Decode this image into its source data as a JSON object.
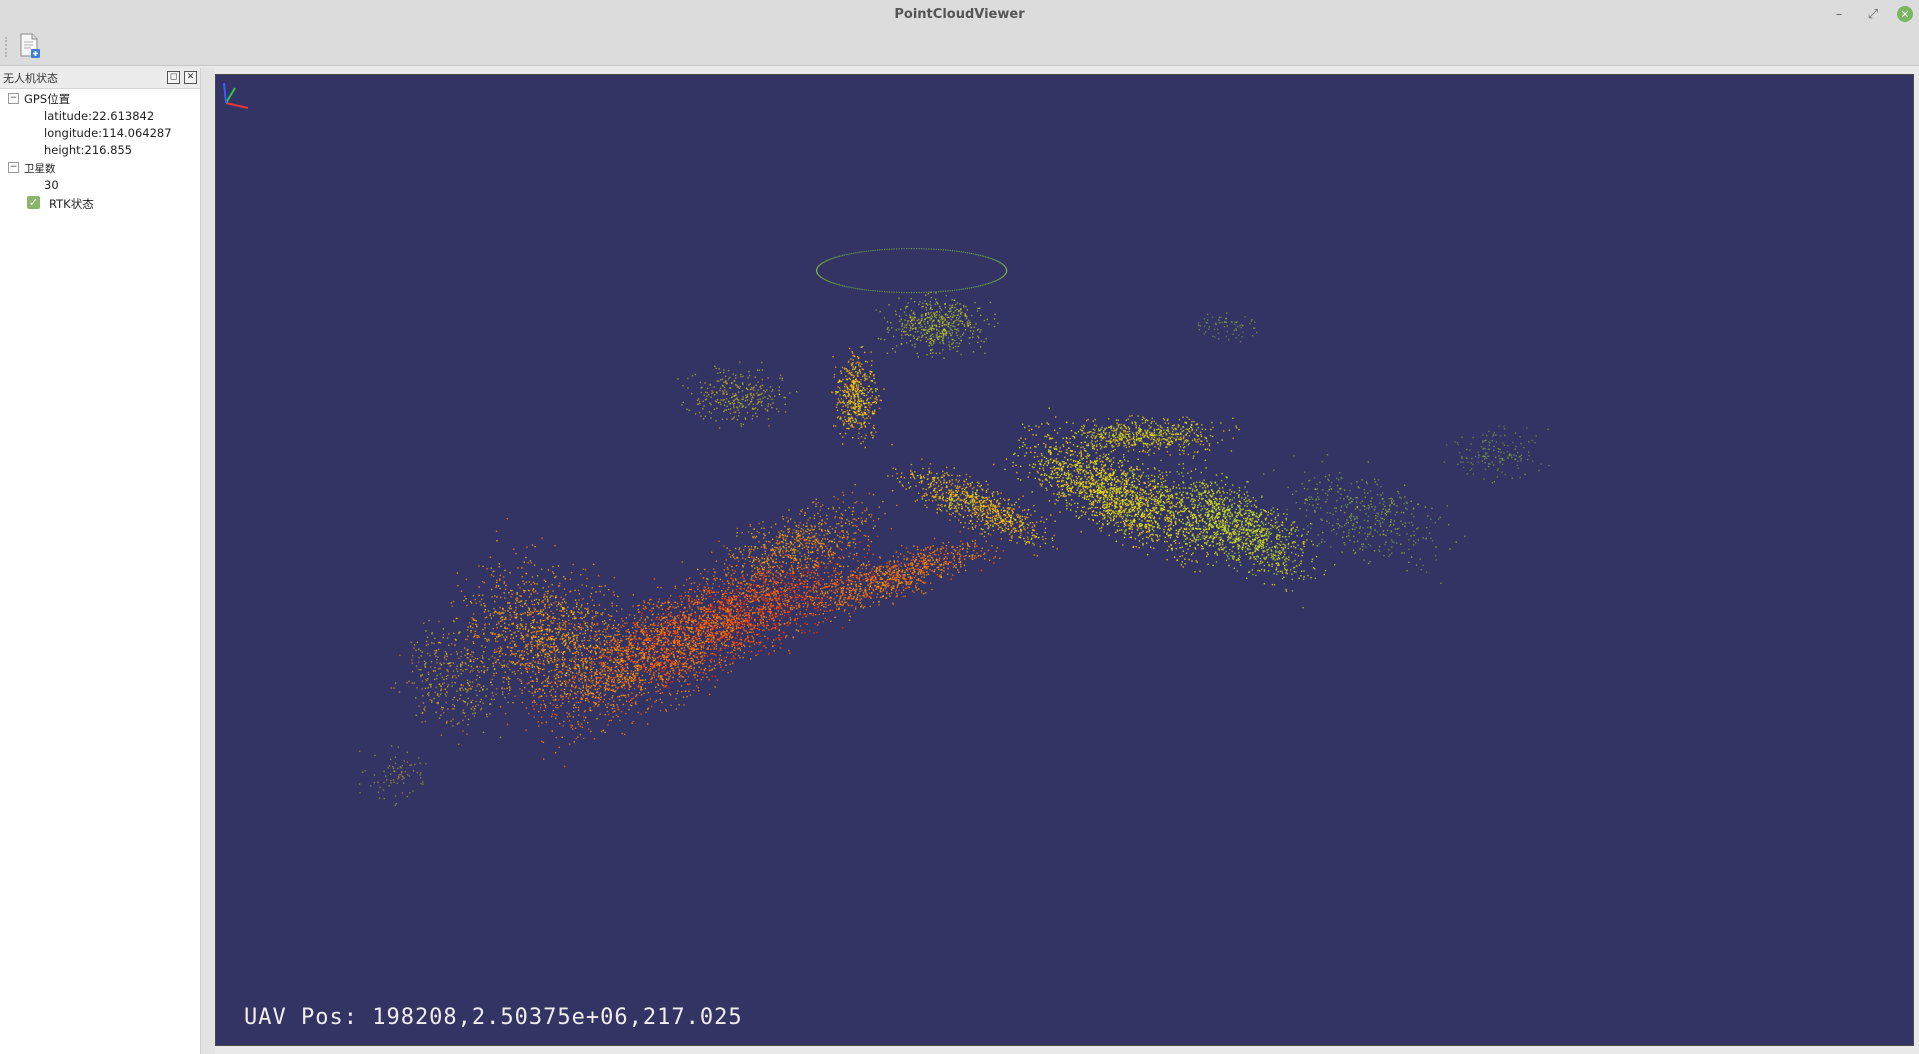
{
  "window": {
    "title": "PointCloudViewer",
    "controls": {
      "minimize": "–",
      "restore": "⤢",
      "close": "✕"
    }
  },
  "toolbar": {
    "items": [
      {
        "icon": "new-file-icon"
      }
    ]
  },
  "dock": {
    "title": "无人机状态",
    "buttons": {
      "float": "◻",
      "close": "✕"
    },
    "tree": {
      "gps": {
        "label": "GPS位置",
        "toggle": "−",
        "latitude": "latitude:22.613842",
        "longitude": "longitude:114.064287",
        "height": "height:216.855"
      },
      "satellites": {
        "label": "卫星数",
        "toggle": "−",
        "value": "30"
      },
      "rtk": {
        "label": "RTK状态",
        "checked": true,
        "check_glyph": "✓"
      }
    }
  },
  "viewport": {
    "background": "#333364",
    "status_text": "UAV Pos: 198208,2.50375e+06,217.025",
    "axes": {
      "x_color": "#e03a3a",
      "y_color": "#33c14a",
      "z_color": "#3a5bff"
    },
    "palette": [
      "#ff2a00",
      "#ff5a00",
      "#ff8000",
      "#ffa200",
      "#ffc800",
      "#f0ea10",
      "#d8f000",
      "#a8d830",
      "#7fc040"
    ]
  }
}
